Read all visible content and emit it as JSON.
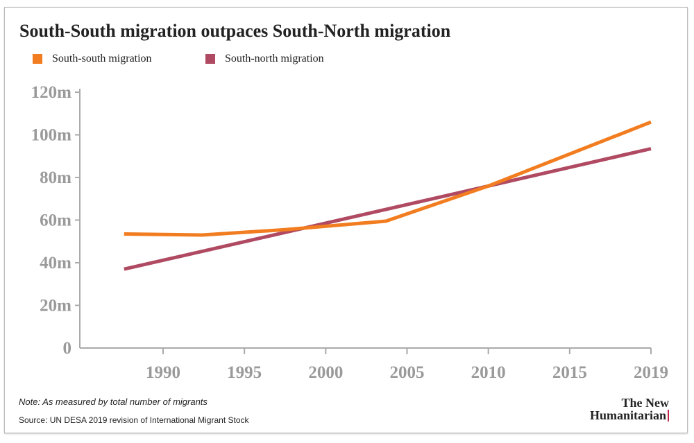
{
  "chart_data": {
    "type": "line",
    "title": "South-South migration outpaces South-North migration",
    "xlabel": "",
    "ylabel": "",
    "x_ticks": [
      "1990",
      "1995",
      "2000",
      "2005",
      "2010",
      "2015",
      "2019"
    ],
    "y_ticks": [
      "0",
      "20m",
      "40m",
      "60m",
      "80m",
      "100m",
      "120m"
    ],
    "ylim": [
      0,
      120
    ],
    "grid": false,
    "legend_position": "top-left",
    "series": [
      {
        "name": "South-south migration",
        "color": "#f27d20",
        "points": [
          [
            1987.6,
            53.5
          ],
          [
            1992.4,
            53
          ],
          [
            1997.5,
            55.5
          ],
          [
            2003.7,
            59.5
          ],
          [
            2010,
            76
          ],
          [
            2019,
            106
          ]
        ]
      },
      {
        "name": "South-north migration",
        "color": "#b04a62",
        "points": [
          [
            1987.6,
            37
          ],
          [
            2003.7,
            65
          ],
          [
            2010,
            76
          ],
          [
            2019,
            93.5
          ]
        ]
      }
    ]
  },
  "footer": {
    "note": "Note: As measured by total number of migrants",
    "source": "Source: UN DESA 2019 revision of International Migrant Stock",
    "logo_line1": "The New",
    "logo_line2": "Humanitarian"
  }
}
